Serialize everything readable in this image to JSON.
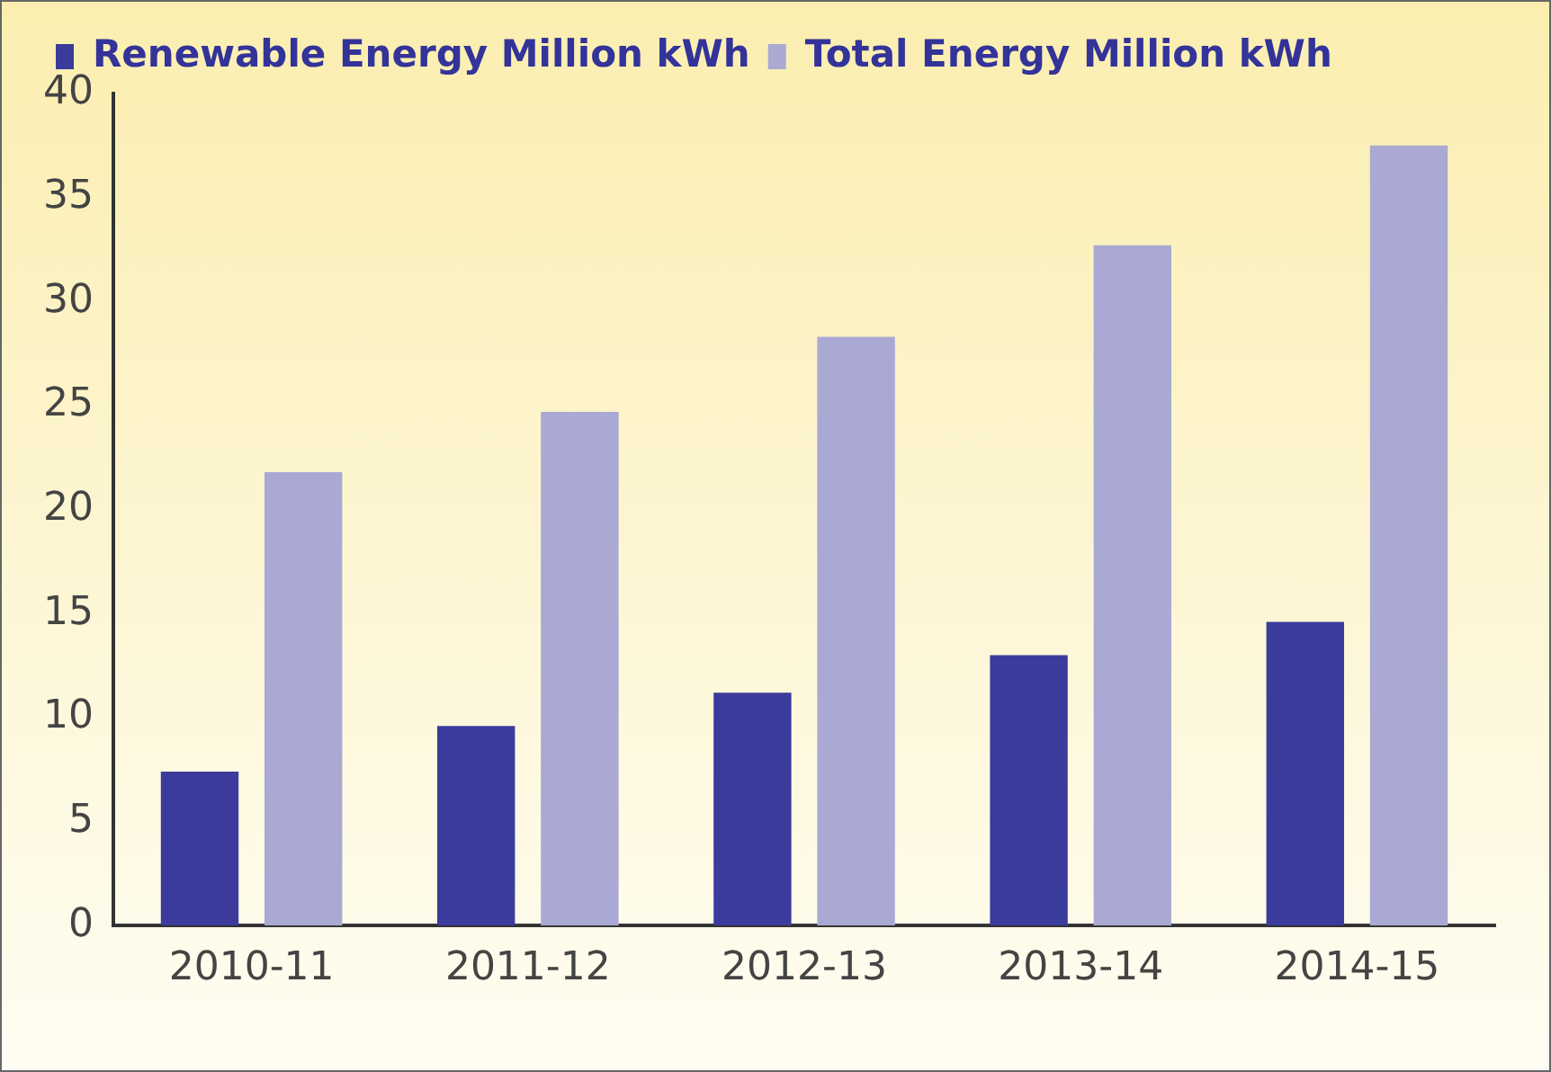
{
  "chart_data": {
    "type": "bar",
    "categories": [
      "2010-11",
      "2011-12",
      "2012-13",
      "2013-14",
      "2014-15"
    ],
    "series": [
      {
        "name": "Renewable Energy Million kWh",
        "color": "#3b3b9c",
        "values": [
          7.4,
          9.6,
          11.2,
          13,
          14.6
        ]
      },
      {
        "name": "Total Energy Million kWh",
        "color": "#a9a9d3",
        "values": [
          21.8,
          24.7,
          28.3,
          32.7,
          37.5
        ]
      }
    ],
    "ylim": [
      0,
      40
    ],
    "yticks": [
      0,
      5,
      10,
      15,
      20,
      25,
      30,
      35,
      40
    ],
    "grid": false,
    "legend": "top left"
  }
}
